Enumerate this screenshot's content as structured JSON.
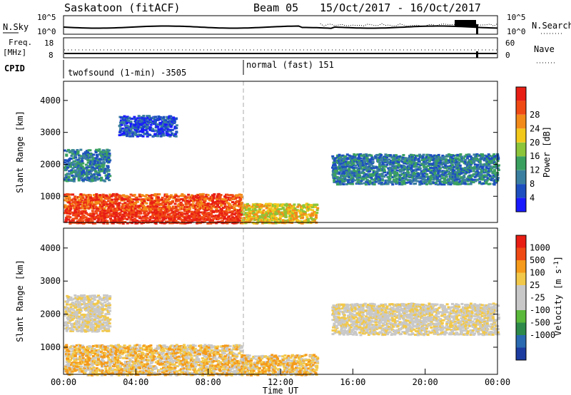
{
  "header": {
    "station": "Saskatoon (fitACF)",
    "beam": "Beam 05",
    "dates": "15/Oct/2017 - 16/Oct/2017"
  },
  "noise_panel": {
    "left_label": "N.Sky",
    "left_ticks": [
      "10^5",
      "10^0"
    ],
    "right_ticks": [
      "10^5",
      "10^0"
    ],
    "right_label": "N.Search"
  },
  "freq_panel": {
    "left_label_1": "Freq.",
    "left_label_2": "[MHz]",
    "left_ticks": [
      "18",
      "8"
    ],
    "right_ticks": [
      "60",
      "0"
    ],
    "right_label": "Nave"
  },
  "cpid": {
    "label": "CPID",
    "segments": [
      {
        "text": "twofsound (1-min) -3505",
        "start_hour": 0
      },
      {
        "text": "normal (fast) 151",
        "start_hour": 10
      }
    ]
  },
  "colors": {
    "power": [
      "#1a1aff",
      "#1d4fc0",
      "#3b7fa0",
      "#3aa060",
      "#8cc43a",
      "#f2c81a",
      "#f28a1a",
      "#f04a14",
      "#e81e14"
    ],
    "velocity": [
      "#e81e14",
      "#f04a14",
      "#f59a1a",
      "#f2c84a",
      "#c8c8c8",
      "#c8c8c8",
      "#5ab83a",
      "#2e8a4a",
      "#2a6ab0",
      "#1c3ca0"
    ]
  },
  "chart_data": [
    {
      "type": "heatmap",
      "name": "power",
      "xlabel": "",
      "ylabel": "Slant Range [km]",
      "colorbar_label": "Power [dB]",
      "colorbar_ticks": [
        "4",
        "8",
        "12",
        "16",
        "20",
        "24",
        "28"
      ],
      "yticks": [
        "1000",
        "2000",
        "3000",
        "4000"
      ],
      "ylim": [
        180,
        4600
      ],
      "xlim": [
        0,
        24
      ],
      "regions": [
        {
          "x": [
            0.0,
            2.5
          ],
          "y": [
            1500,
            2500
          ],
          "level": 2
        },
        {
          "x": [
            0.0,
            9.8
          ],
          "y": [
            180,
            1100
          ],
          "level": 7
        },
        {
          "x": [
            9.8,
            14.0
          ],
          "y": [
            180,
            800
          ],
          "level": 5
        },
        {
          "x": [
            14.8,
            24.0
          ],
          "y": [
            1400,
            2350
          ],
          "level": 2
        },
        {
          "x": [
            3.0,
            6.2
          ],
          "y": [
            2900,
            3550
          ],
          "level": 1
        }
      ]
    },
    {
      "type": "heatmap",
      "name": "velocity",
      "xlabel": "Time UT",
      "ylabel": "Slant Range [km]",
      "colorbar_label": "Velocity [m s^-1]",
      "colorbar_ticks": [
        "1000",
        "500",
        "100",
        "25",
        "-25",
        "-100",
        "-500",
        "-1000"
      ],
      "xticks": [
        "00:00",
        "04:00",
        "08:00",
        "12:00",
        "16:00",
        "20:00",
        "00:00"
      ],
      "yticks": [
        "1000",
        "2000",
        "3000",
        "4000"
      ],
      "ylim": [
        180,
        4600
      ],
      "xlim": [
        0,
        24
      ],
      "regions": [
        {
          "x": [
            0.0,
            2.5
          ],
          "y": [
            1500,
            2600
          ],
          "level": 4
        },
        {
          "x": [
            0.0,
            9.8
          ],
          "y": [
            180,
            1100
          ],
          "level": 3
        },
        {
          "x": [
            9.8,
            14.0
          ],
          "y": [
            180,
            800
          ],
          "level": 3
        },
        {
          "x": [
            14.8,
            24.0
          ],
          "y": [
            1400,
            2350
          ],
          "level": 4
        }
      ]
    }
  ]
}
